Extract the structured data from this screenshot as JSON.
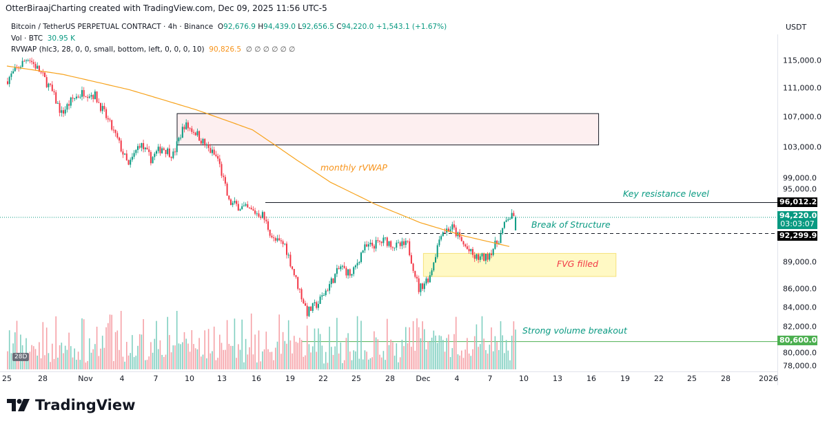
{
  "credit": "OtterBiraajCharting created with TradingView.com, Dec 09, 2025 11:56 UTC-5",
  "legend": {
    "symbol": "Bitcoin / TetherUS PERPETUAL CONTRACT · 4h · Binance",
    "open_label": "O",
    "open": "92,676.9",
    "high_label": "H",
    "high": "94,439.0",
    "low_label": "L",
    "low": "92,656.5",
    "close_label": "C",
    "close": "94,220.0",
    "change": "+1,543.1 (+1.67%)",
    "vol_label": "Vol · BTC",
    "vol": "30.95 K",
    "rvwap_label": "RVWAP (hlc3, 28, 0, 0, small, bottom, left, 0, 0, 0, 10)",
    "rvwap_value": "90,826.5",
    "rvwap_empty": "∅ ∅ ∅ ∅ ∅ ∅"
  },
  "currency": "USDT",
  "badge_28d": "28D",
  "brand": "TradingView",
  "colors": {
    "up": "#089981",
    "down": "#f23645",
    "vwap": "#f7a21b",
    "fvg": "#fff9c4",
    "supply": "#fdeff0",
    "annotation": "#089981",
    "fvg_text": "#f23645",
    "current_price": "#089981",
    "support_line": "#4caf50"
  },
  "price_axis": [
    "115,000.0",
    "111,000.0",
    "107,000.0",
    "103,000.0",
    "99,000.0",
    "95,000.0",
    "89,000.0",
    "86,000.0",
    "84,000.0",
    "82,000.0",
    "80,000.0",
    "78,000.0"
  ],
  "price_badges": {
    "resistance": "96,012.2",
    "current": "94,220.0",
    "countdown": "03:03:07",
    "bos": "92,299.9",
    "support": "80,600.0"
  },
  "time_axis": [
    "25",
    "28",
    "Nov",
    "4",
    "7",
    "10",
    "13",
    "16",
    "19",
    "22",
    "25",
    "28",
    "Dec",
    "4",
    "7",
    "10",
    "13",
    "16",
    "19",
    "22",
    "25",
    "28",
    "2026"
  ],
  "annotations": {
    "vwap": "monthly rVWAP",
    "resistance": "Key resistance level",
    "bos": "Break of Structure",
    "fvg": "FVG filled",
    "volume": "Strong volume breakout"
  },
  "chart_data": {
    "type": "candlestick",
    "interval": "4h",
    "scale": "log",
    "ylim": [
      78000,
      117000
    ],
    "xlim": [
      "2025-10-25",
      "2026-01-02"
    ],
    "approx_daily_close": [
      [
        "2025-10-25",
        112000
      ],
      [
        "2025-10-27",
        115500
      ],
      [
        "2025-10-28",
        113500
      ],
      [
        "2025-10-29",
        111000
      ],
      [
        "2025-10-30",
        107500
      ],
      [
        "2025-10-31",
        109500
      ],
      [
        "2025-11-01",
        110500
      ],
      [
        "2025-11-02",
        110000
      ],
      [
        "2025-11-03",
        107000
      ],
      [
        "2025-11-04",
        104000
      ],
      [
        "2025-11-05",
        100500
      ],
      [
        "2025-11-06",
        103500
      ],
      [
        "2025-11-07",
        101500
      ],
      [
        "2025-11-08",
        103000
      ],
      [
        "2025-11-09",
        102000
      ],
      [
        "2025-11-10",
        106000
      ],
      [
        "2025-11-11",
        105000
      ],
      [
        "2025-11-12",
        103000
      ],
      [
        "2025-11-13",
        101500
      ],
      [
        "2025-11-14",
        96000
      ],
      [
        "2025-11-15",
        95500
      ],
      [
        "2025-11-16",
        95000
      ],
      [
        "2025-11-17",
        94500
      ],
      [
        "2025-11-18",
        91500
      ],
      [
        "2025-11-19",
        91000
      ],
      [
        "2025-11-20",
        87000
      ],
      [
        "2025-11-21",
        83500
      ],
      [
        "2025-11-22",
        84500
      ],
      [
        "2025-11-23",
        86500
      ],
      [
        "2025-11-24",
        88500
      ],
      [
        "2025-11-25",
        87500
      ],
      [
        "2025-11-26",
        90500
      ],
      [
        "2025-11-27",
        91000
      ],
      [
        "2025-11-28",
        91500
      ],
      [
        "2025-11-29",
        90800
      ],
      [
        "2025-11-30",
        91000
      ],
      [
        "2025-12-01",
        86000
      ],
      [
        "2025-12-02",
        87500
      ],
      [
        "2025-12-03",
        92500
      ],
      [
        "2025-12-04",
        93000
      ],
      [
        "2025-12-05",
        91000
      ],
      [
        "2025-12-06",
        89500
      ],
      [
        "2025-12-07",
        89500
      ],
      [
        "2025-12-08",
        91200
      ],
      [
        "2025-12-09",
        94220
      ]
    ],
    "last_candle": {
      "open": 92676.9,
      "high": 94439.0,
      "low": 92656.5,
      "close": 94220.0
    },
    "rvwap": [
      [
        "2025-10-25",
        114200
      ],
      [
        "2025-10-30",
        113000
      ],
      [
        "2025-11-05",
        110800
      ],
      [
        "2025-11-11",
        108000
      ],
      [
        "2025-11-16",
        105300
      ],
      [
        "2025-11-20",
        101300
      ],
      [
        "2025-11-23",
        98500
      ],
      [
        "2025-11-27",
        95800
      ],
      [
        "2025-12-01",
        93600
      ],
      [
        "2025-12-05",
        92000
      ],
      [
        "2025-12-09",
        90800
      ]
    ],
    "zones": {
      "supply": {
        "from": "2025-11-09",
        "to": "2025-12-17",
        "low": 103300,
        "high": 107500
      },
      "fvg": {
        "from": "2025-12-01",
        "to": "2025-12-18",
        "low": 87400,
        "high": 90000
      }
    },
    "levels": {
      "resistance": 96012.2,
      "break_of_structure": 92299.9,
      "current": 94220.0,
      "support": 80600.0
    }
  }
}
